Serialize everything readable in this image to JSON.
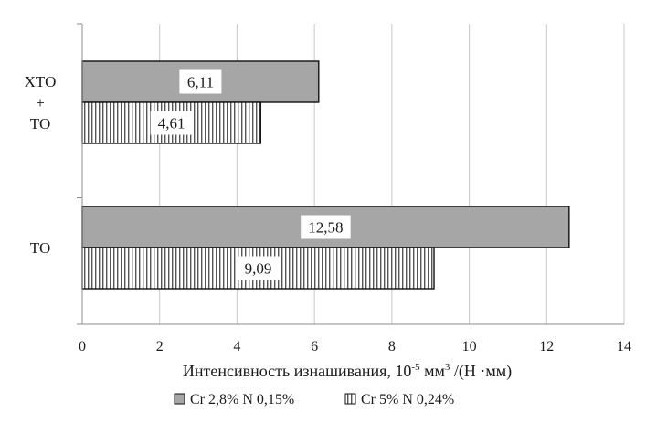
{
  "chart_data": {
    "type": "bar",
    "orientation": "horizontal",
    "categories": [
      {
        "lines": [
          "ХТО",
          "+",
          "ТО"
        ]
      },
      {
        "lines": [
          "ТО"
        ]
      }
    ],
    "series": [
      {
        "name": "Cr 2,8% N 0,15%",
        "values": [
          6.11,
          12.58
        ],
        "value_labels": [
          "6,11",
          "12,58"
        ],
        "fill": "gray"
      },
      {
        "name": "Cr 5% N 0,24%",
        "values": [
          4.61,
          9.09
        ],
        "value_labels": [
          "4,61",
          "9,09"
        ],
        "fill": "vertical-stripes"
      }
    ],
    "xlabel": {
      "main": "Интенсивность изнашивания,  10",
      "sup": "-5",
      "mid": " мм",
      "sup2": "3",
      "tail": " /(Н ·мм)"
    },
    "xlim": [
      0,
      14
    ],
    "xticks": [
      "0",
      "2",
      "4",
      "6",
      "8",
      "10",
      "12",
      "14"
    ],
    "xtick_values": [
      0,
      2,
      4,
      6,
      8,
      10,
      12,
      14
    ],
    "grid": "vertical",
    "legend_position": "bottom",
    "colors": {
      "gray_fill": "#a6a6a6",
      "stripe": "#555555",
      "border": "#111111",
      "grid": "#c8c8c8"
    }
  }
}
